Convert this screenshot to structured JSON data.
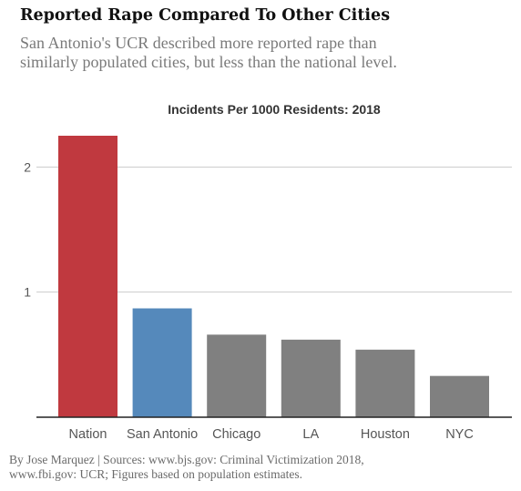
{
  "header": {
    "title": "Reported Rape Compared To Other Cities",
    "subtitle_lines": [
      "San Antonio's UCR described more reported rape than",
      "similarly populated cities, but less than the national level."
    ]
  },
  "chart_data": {
    "type": "bar",
    "title": "Incidents Per 1000 Residents: 2018",
    "xlabel": "",
    "ylabel": "",
    "categories": [
      "Nation",
      "San Antonio",
      "Chicago",
      "LA",
      "Houston",
      "NYC"
    ],
    "values": [
      2.25,
      0.87,
      0.66,
      0.62,
      0.54,
      0.33
    ],
    "ylim": [
      0,
      2.25
    ],
    "yticks": [
      "1",
      "2"
    ],
    "ytick_values": [
      1,
      2
    ],
    "grid": "horizontal",
    "colors": {
      "Nation": "#c0393f",
      "San Antonio": "#5589bb",
      "default": "#808080",
      "grid": "#cccccc",
      "axis": "#222222",
      "tick_label": "#555555"
    }
  },
  "footer": {
    "lines": [
      "By Jose Marquez | Sources: www.bjs.gov: Criminal Victimization 2018,",
      "www.fbi.gov: UCR; Figures based on population estimates."
    ]
  }
}
